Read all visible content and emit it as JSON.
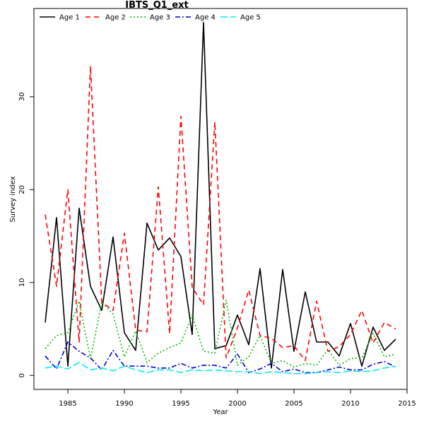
{
  "chart_data": {
    "type": "line",
    "title": "IBTS_Q1_ext",
    "xlabel": "Year",
    "ylabel": "Survey index",
    "xlim": [
      1982,
      2015
    ],
    "ylim": [
      -1.5,
      39.5
    ],
    "xticks": [
      1985,
      1990,
      1995,
      2000,
      2005,
      2010,
      2015
    ],
    "yticks": [
      0,
      10,
      20,
      30
    ],
    "grid": false,
    "legend_position": "top-left",
    "x": [
      1983,
      1984,
      1985,
      1986,
      1987,
      1988,
      1989,
      1990,
      1991,
      1992,
      1993,
      1994,
      1995,
      1996,
      1997,
      1998,
      1999,
      2000,
      2001,
      2002,
      2003,
      2004,
      2005,
      2006,
      2007,
      2008,
      2009,
      2010,
      2011,
      2012,
      2013,
      2014
    ],
    "series": [
      {
        "name": "Age 1",
        "color": "#000000",
        "dash": "",
        "width": 1.6,
        "values": [
          5.7,
          17.0,
          1.0,
          18.0,
          9.6,
          7.0,
          14.9,
          4.6,
          2.7,
          16.4,
          13.5,
          14.8,
          12.8,
          4.4,
          38.0,
          2.9,
          3.2,
          6.5,
          3.3,
          11.5,
          0.8,
          11.4,
          2.6,
          9.0,
          3.6,
          3.6,
          2.1,
          5.6,
          1.0,
          5.2,
          2.7,
          3.9
        ]
      },
      {
        "name": "Age 2",
        "color": "#ff0000",
        "dash": "7,5",
        "width": 1.6,
        "values": [
          17.3,
          9.6,
          20.0,
          3.6,
          33.3,
          7.9,
          7.0,
          15.3,
          4.9,
          4.7,
          20.3,
          4.5,
          27.9,
          9.5,
          7.6,
          27.3,
          1.9,
          5.1,
          9.2,
          4.3,
          4.0,
          3.0,
          3.2,
          1.6,
          8.0,
          2.6,
          3.1,
          4.4,
          7.0,
          3.5,
          5.7,
          5.0
        ]
      },
      {
        "name": "Age 3",
        "color": "#00bb00",
        "dash": "2,3",
        "width": 1.6,
        "values": [
          2.9,
          4.3,
          4.6,
          8.0,
          1.8,
          7.9,
          6.6,
          2.0,
          4.8,
          1.4,
          2.4,
          3.0,
          3.5,
          6.5,
          2.6,
          2.4,
          8.1,
          1.1,
          2.0,
          4.3,
          1.3,
          1.6,
          0.9,
          1.3,
          1.1,
          2.8,
          1.1,
          1.8,
          1.9,
          4.5,
          2.0,
          2.3
        ]
      },
      {
        "name": "Age 4",
        "color": "#0000dd",
        "dash": "7,3,2,3",
        "width": 1.6,
        "values": [
          2.1,
          0.7,
          3.6,
          2.6,
          1.9,
          0.6,
          2.7,
          1.0,
          1.0,
          1.0,
          0.8,
          0.8,
          1.3,
          0.8,
          1.1,
          1.1,
          0.8,
          2.3,
          0.3,
          0.7,
          1.3,
          0.4,
          0.7,
          0.3,
          0.3,
          0.6,
          0.9,
          0.6,
          0.6,
          1.2,
          1.5,
          0.9
        ]
      },
      {
        "name": "Age 5",
        "color": "#00eeee",
        "dash": "10,4",
        "width": 1.6,
        "values": [
          0.8,
          1.0,
          0.7,
          1.4,
          0.6,
          0.8,
          0.5,
          1.0,
          0.6,
          0.3,
          0.6,
          0.6,
          0.3,
          0.6,
          0.5,
          0.6,
          0.5,
          0.4,
          0.4,
          0.2,
          0.4,
          0.3,
          0.2,
          0.2,
          0.3,
          0.4,
          0.3,
          0.5,
          0.4,
          0.5,
          0.8,
          1.0
        ]
      }
    ]
  }
}
